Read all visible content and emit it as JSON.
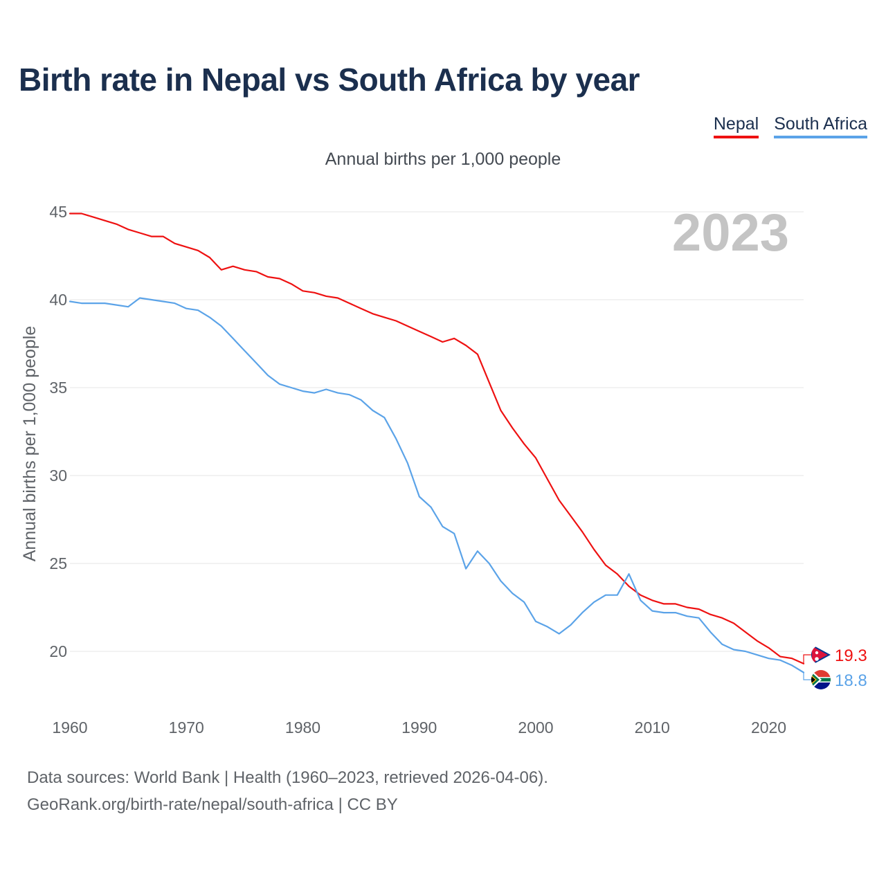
{
  "title": "Birth rate in Nepal vs South Africa by year",
  "subtitle": "Annual births per 1,000 people",
  "legend": [
    {
      "label": "Nepal",
      "color": "#ee1111"
    },
    {
      "label": "South Africa",
      "color": "#5ba3e8"
    }
  ],
  "year_display": "2023",
  "footer": {
    "line1": "Data sources: World Bank | Health (1960–2023, retrieved 2026-04-06).",
    "line2": "GeoRank.org/birth-rate/nepal/south-africa | CC BY"
  },
  "chart_data": {
    "type": "line",
    "title": "Birth rate in Nepal vs South Africa by year",
    "subtitle": "Annual births per 1,000 people",
    "xlabel": "",
    "ylabel": "Annual births per 1,000 people",
    "xlim": [
      1960,
      2023
    ],
    "ylim": [
      17.5,
      46
    ],
    "x_ticks": [
      1960,
      1970,
      1980,
      1990,
      2000,
      2010,
      2020
    ],
    "y_ticks": [
      20,
      25,
      30,
      35,
      40,
      45
    ],
    "grid": true,
    "x": [
      1960,
      1961,
      1962,
      1963,
      1964,
      1965,
      1966,
      1967,
      1968,
      1969,
      1970,
      1971,
      1972,
      1973,
      1974,
      1975,
      1976,
      1977,
      1978,
      1979,
      1980,
      1981,
      1982,
      1983,
      1984,
      1985,
      1986,
      1987,
      1988,
      1989,
      1990,
      1991,
      1992,
      1993,
      1994,
      1995,
      1996,
      1997,
      1998,
      1999,
      2000,
      2001,
      2002,
      2003,
      2004,
      2005,
      2006,
      2007,
      2008,
      2009,
      2010,
      2011,
      2012,
      2013,
      2014,
      2015,
      2016,
      2017,
      2018,
      2019,
      2020,
      2021,
      2022,
      2023
    ],
    "series": [
      {
        "name": "Nepal",
        "color": "#ee1111",
        "end_label": "19.3",
        "values": [
          44.9,
          44.9,
          44.7,
          44.5,
          44.3,
          44.0,
          43.8,
          43.6,
          43.6,
          43.2,
          43.0,
          42.8,
          42.4,
          41.7,
          41.9,
          41.7,
          41.6,
          41.3,
          41.2,
          40.9,
          40.5,
          40.4,
          40.2,
          40.1,
          39.8,
          39.5,
          39.2,
          39.0,
          38.8,
          38.5,
          38.2,
          37.9,
          37.6,
          37.8,
          37.4,
          36.9,
          35.3,
          33.7,
          32.7,
          31.8,
          31.0,
          29.8,
          28.6,
          27.7,
          26.8,
          25.8,
          24.9,
          24.4,
          23.7,
          23.2,
          22.9,
          22.7,
          22.7,
          22.5,
          22.4,
          22.1,
          21.9,
          21.6,
          21.1,
          20.6,
          20.2,
          19.7,
          19.6,
          19.3
        ]
      },
      {
        "name": "South Africa",
        "color": "#5ba3e8",
        "end_label": "18.8",
        "values": [
          39.9,
          39.8,
          39.8,
          39.8,
          39.7,
          39.6,
          40.1,
          40.0,
          39.9,
          39.8,
          39.5,
          39.4,
          39.0,
          38.5,
          37.8,
          37.1,
          36.4,
          35.7,
          35.2,
          35.0,
          34.8,
          34.7,
          34.9,
          34.7,
          34.6,
          34.3,
          33.7,
          33.3,
          32.1,
          30.7,
          28.8,
          28.2,
          27.1,
          26.7,
          24.7,
          25.7,
          25.0,
          24.0,
          23.3,
          22.8,
          21.7,
          21.4,
          21.0,
          21.5,
          22.2,
          22.8,
          23.2,
          23.2,
          24.4,
          22.9,
          22.3,
          22.2,
          22.2,
          22.0,
          21.9,
          21.1,
          20.4,
          20.1,
          20.0,
          19.8,
          19.6,
          19.5,
          19.2,
          18.8
        ]
      }
    ]
  }
}
